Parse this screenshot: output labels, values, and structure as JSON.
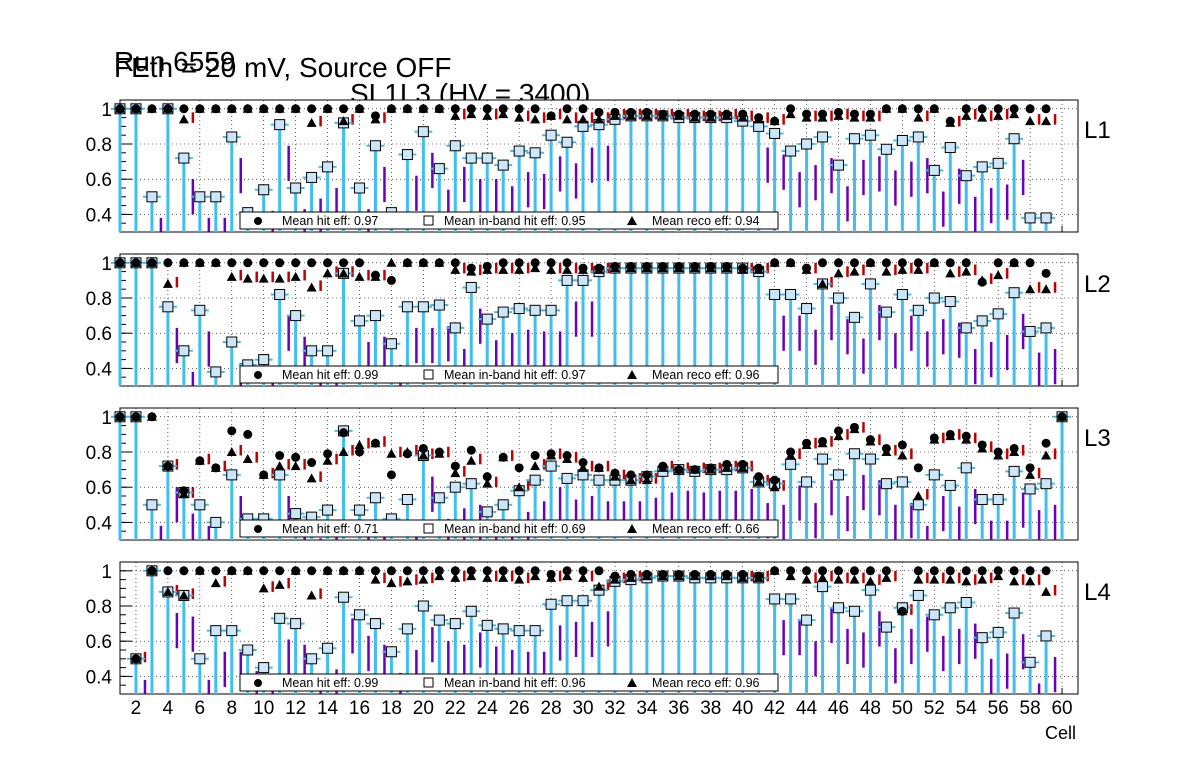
{
  "title": {
    "run": "Run 6559",
    "chamber": "SL1L3 (HV = 3400)",
    "conditions": "FEth = 20 mV, Source OFF"
  },
  "x_axis_label": "Cell",
  "legend_labels": {
    "hit": "Mean hit  eff:",
    "inband": "Mean in-band hit eff:",
    "reco": "Mean reco eff:"
  },
  "colors": {
    "hit_marker": "#000000",
    "inband_box_fill": "#cde6f7",
    "inband_errbar": "#3fbfef",
    "reco_marker": "#000000",
    "purple_bar": "#6a00b8",
    "red_bar": "#c00000",
    "grid": "#000000"
  },
  "chart_data": [
    {
      "type": "scatter",
      "layer": "L1",
      "xlim": [
        1,
        61
      ],
      "ylim": [
        0.3,
        1.05
      ],
      "x_ticks": [
        2,
        4,
        6,
        8,
        10,
        12,
        14,
        16,
        18,
        20,
        22,
        24,
        26,
        28,
        30,
        32,
        34,
        36,
        38,
        40,
        42,
        44,
        46,
        48,
        50,
        52,
        54,
        56,
        58,
        60
      ],
      "y_ticks": [
        0.4,
        0.6,
        0.8,
        1
      ],
      "grid": true,
      "legend_values": {
        "hit": "0.97",
        "inband": "0.95",
        "reco": "0.94"
      },
      "cells": [
        1,
        2,
        3,
        4,
        5,
        6,
        7,
        8,
        9,
        10,
        11,
        12,
        13,
        14,
        15,
        16,
        17,
        18,
        19,
        20,
        21,
        22,
        23,
        24,
        25,
        26,
        27,
        28,
        29,
        30,
        31,
        32,
        33,
        34,
        35,
        36,
        37,
        38,
        39,
        40,
        41,
        42,
        43,
        44,
        45,
        46,
        47,
        48,
        49,
        50,
        51,
        52,
        53,
        54,
        55,
        56,
        57,
        58,
        59
      ],
      "series": [
        {
          "name": "Mean hit  eff",
          "values": [
            1,
            1,
            1,
            1,
            1,
            1,
            1,
            1,
            1,
            1,
            1,
            1,
            1,
            1,
            1,
            1,
            0.96,
            1,
            1,
            1,
            1,
            1,
            1,
            1,
            1,
            1,
            1,
            0.96,
            1,
            1,
            0.98,
            0.98,
            0.98,
            0.98,
            0.97,
            0.97,
            0.97,
            0.97,
            0.97,
            0.97,
            0.95,
            0.93,
            1,
            0.97,
            0.97,
            0.98,
            0.97,
            0.97,
            1,
            1,
            1,
            1,
            0.93,
            1,
            1,
            1,
            1,
            1,
            1
          ]
        },
        {
          "name": "Mean in-band hit eff",
          "values": [
            1,
            1,
            0.5,
            1,
            0.72,
            0.5,
            0.5,
            0.84,
            0.41,
            0.54,
            0.91,
            0.55,
            0.61,
            0.67,
            0.92,
            0.55,
            0.79,
            0.41,
            0.74,
            0.87,
            0.66,
            0.79,
            0.72,
            0.72,
            0.68,
            0.76,
            0.75,
            0.85,
            0.81,
            0.9,
            0.91,
            0.94,
            0.96,
            0.96,
            0.96,
            0.95,
            0.95,
            0.95,
            0.95,
            0.93,
            0.9,
            0.86,
            0.76,
            0.8,
            0.84,
            0.68,
            0.83,
            0.85,
            0.77,
            0.82,
            0.84,
            0.65,
            0.78,
            0.62,
            0.67,
            0.69,
            0.83,
            0.38,
            0.38
          ]
        },
        {
          "name": "Mean reco eff",
          "values": [
            1,
            1,
            1,
            1,
            0.94,
            1,
            1,
            1,
            1,
            1,
            1,
            1,
            0.92,
            1,
            0.93,
            1,
            0.94,
            1,
            1,
            1,
            1,
            0.96,
            0.97,
            0.96,
            0.97,
            0.95,
            0.94,
            0.96,
            0.94,
            0.94,
            0.94,
            0.96,
            0.96,
            0.96,
            0.96,
            0.96,
            0.95,
            0.95,
            0.96,
            0.95,
            0.94,
            0.93,
            0.97,
            0.95,
            0.95,
            0.96,
            0.95,
            0.95,
            1,
            1,
            0.95,
            1,
            0.92,
            0.96,
            0.95,
            0.96,
            0.97,
            0.93,
            0.93
          ]
        }
      ]
    },
    {
      "type": "scatter",
      "layer": "L2",
      "xlim": [
        1,
        61
      ],
      "ylim": [
        0.3,
        1.05
      ],
      "x_ticks": [
        2,
        4,
        6,
        8,
        10,
        12,
        14,
        16,
        18,
        20,
        22,
        24,
        26,
        28,
        30,
        32,
        34,
        36,
        38,
        40,
        42,
        44,
        46,
        48,
        50,
        52,
        54,
        56,
        58,
        60
      ],
      "y_ticks": [
        0.4,
        0.6,
        0.8,
        1
      ],
      "grid": true,
      "legend_values": {
        "hit": "0.99",
        "inband": "0.97",
        "reco": "0.96"
      },
      "cells": [
        1,
        2,
        3,
        4,
        5,
        6,
        7,
        8,
        9,
        10,
        11,
        12,
        13,
        14,
        15,
        16,
        17,
        18,
        19,
        20,
        21,
        22,
        23,
        24,
        25,
        26,
        27,
        28,
        29,
        30,
        31,
        32,
        33,
        34,
        35,
        36,
        37,
        38,
        39,
        40,
        41,
        42,
        43,
        44,
        45,
        46,
        47,
        48,
        49,
        50,
        51,
        52,
        53,
        54,
        55,
        56,
        57,
        58,
        59
      ],
      "series": [
        {
          "name": "Mean hit  eff",
          "values": [
            1,
            1,
            1,
            1,
            1,
            1,
            1,
            1,
            1,
            1,
            1,
            1,
            1,
            1,
            1,
            1,
            0.93,
            0.9,
            1,
            1,
            1,
            1,
            0.97,
            0.98,
            1,
            1,
            1,
            1,
            1,
            0.97,
            0.97,
            0.98,
            0.98,
            0.98,
            0.98,
            0.98,
            0.98,
            0.98,
            0.98,
            0.97,
            0.97,
            1,
            1,
            0.97,
            1,
            1,
            1,
            1,
            1,
            1,
            1,
            1,
            1,
            1,
            0.89,
            1,
            1,
            1,
            0.94
          ]
        },
        {
          "name": "Mean in-band hit eff",
          "values": [
            1,
            1,
            1,
            0.75,
            0.5,
            0.73,
            0.38,
            0.55,
            0.42,
            0.45,
            0.82,
            0.7,
            0.5,
            0.5,
            0.94,
            0.67,
            0.7,
            0.54,
            0.75,
            0.75,
            0.76,
            0.63,
            0.86,
            0.68,
            0.72,
            0.74,
            0.73,
            0.73,
            0.9,
            0.9,
            0.95,
            0.97,
            0.97,
            0.97,
            0.97,
            0.97,
            0.97,
            0.97,
            0.97,
            0.97,
            0.95,
            0.82,
            0.82,
            0.74,
            0.88,
            0.8,
            0.69,
            0.88,
            0.72,
            0.82,
            0.73,
            0.8,
            0.78,
            0.63,
            0.67,
            0.71,
            0.83,
            0.61,
            0.63
          ]
        },
        {
          "name": "Mean reco eff",
          "values": [
            1,
            1,
            1,
            0.88,
            1,
            1,
            1,
            0.92,
            0.91,
            0.91,
            0.91,
            0.92,
            0.86,
            0.94,
            0.94,
            0.92,
            0.92,
            1,
            1,
            1,
            1,
            0.96,
            0.95,
            0.96,
            0.96,
            0.96,
            0.97,
            0.96,
            0.96,
            0.96,
            0.96,
            0.97,
            0.97,
            0.97,
            0.97,
            0.97,
            0.97,
            0.97,
            0.97,
            0.96,
            0.96,
            1,
            1,
            0.96,
            0.88,
            0.94,
            0.95,
            1,
            0.95,
            0.96,
            0.96,
            1,
            0.94,
            0.95,
            0.9,
            0.93,
            1,
            0.85,
            0.85
          ]
        }
      ]
    },
    {
      "type": "scatter",
      "layer": "L3",
      "xlim": [
        1,
        61
      ],
      "ylim": [
        0.3,
        1.05
      ],
      "x_ticks": [
        2,
        4,
        6,
        8,
        10,
        12,
        14,
        16,
        18,
        20,
        22,
        24,
        26,
        28,
        30,
        32,
        34,
        36,
        38,
        40,
        42,
        44,
        46,
        48,
        50,
        52,
        54,
        56,
        58,
        60
      ],
      "y_ticks": [
        0.4,
        0.6,
        0.8,
        1
      ],
      "grid": true,
      "legend_values": {
        "hit": "0.71",
        "inband": "0.69",
        "reco": "0.66"
      },
      "cells": [
        1,
        2,
        3,
        4,
        5,
        6,
        7,
        8,
        9,
        10,
        11,
        12,
        13,
        14,
        15,
        16,
        17,
        18,
        19,
        20,
        21,
        22,
        23,
        24,
        25,
        26,
        27,
        28,
        29,
        30,
        31,
        32,
        33,
        34,
        35,
        36,
        37,
        38,
        39,
        40,
        41,
        42,
        43,
        44,
        45,
        46,
        47,
        48,
        49,
        50,
        51,
        52,
        53,
        54,
        55,
        56,
        57,
        58,
        59,
        60
      ],
      "series": [
        {
          "name": "Mean hit  eff",
          "values": [
            1,
            1,
            1,
            0.72,
            0.58,
            0.75,
            0.71,
            0.92,
            0.9,
            0.67,
            0.78,
            0.77,
            0.74,
            0.79,
            0.91,
            0.8,
            0.85,
            0.67,
            0.79,
            0.82,
            0.8,
            0.72,
            0.81,
            0.66,
            0.77,
            0.71,
            0.78,
            0.79,
            0.78,
            0.74,
            0.71,
            0.68,
            0.67,
            0.67,
            0.72,
            0.7,
            0.7,
            0.71,
            0.73,
            0.73,
            0.66,
            0.64,
            0.8,
            0.85,
            0.86,
            0.92,
            0.94,
            0.87,
            0.82,
            0.84,
            0.71,
            0.88,
            0.9,
            0.89,
            0.84,
            0.8,
            0.82,
            0.71,
            0.85,
            1
          ]
        },
        {
          "name": "Mean in-band hit eff",
          "values": [
            1,
            1,
            0.5,
            0.72,
            0.57,
            0.5,
            0.4,
            0.67,
            0.42,
            0.42,
            0.67,
            0.45,
            0.43,
            0.47,
            0.92,
            0.47,
            0.54,
            0.42,
            0.53,
            0.78,
            0.54,
            0.6,
            0.62,
            0.46,
            0.5,
            0.58,
            0.64,
            0.72,
            0.65,
            0.67,
            0.64,
            0.64,
            0.64,
            0.66,
            0.69,
            0.7,
            0.69,
            0.7,
            0.7,
            0.71,
            0.63,
            0.62,
            0.73,
            0.63,
            0.76,
            0.67,
            0.79,
            0.76,
            0.62,
            0.63,
            0.5,
            0.67,
            0.61,
            0.71,
            0.53,
            0.53,
            0.69,
            0.59,
            0.62,
            1
          ]
        },
        {
          "name": "Mean reco eff",
          "values": [
            1,
            1,
            1,
            0.72,
            0.56,
            0.75,
            0.71,
            0.8,
            0.76,
            0.67,
            0.72,
            0.72,
            0.65,
            0.75,
            0.8,
            0.84,
            0.85,
            0.79,
            0.8,
            0.78,
            0.79,
            0.68,
            0.75,
            0.62,
            0.77,
            0.6,
            0.72,
            0.78,
            0.76,
            0.71,
            0.71,
            0.66,
            0.64,
            0.64,
            0.71,
            0.7,
            0.7,
            0.7,
            0.71,
            0.71,
            0.63,
            0.6,
            0.78,
            0.84,
            0.85,
            0.89,
            0.93,
            0.86,
            0.8,
            0.78,
            0.55,
            0.87,
            0.89,
            0.87,
            0.82,
            0.78,
            0.8,
            0.67,
            0.78,
            1
          ]
        }
      ]
    },
    {
      "type": "scatter",
      "layer": "L4",
      "xlim": [
        1,
        61
      ],
      "ylim": [
        0.3,
        1.05
      ],
      "x_ticks": [
        2,
        4,
        6,
        8,
        10,
        12,
        14,
        16,
        18,
        20,
        22,
        24,
        26,
        28,
        30,
        32,
        34,
        36,
        38,
        40,
        42,
        44,
        46,
        48,
        50,
        52,
        54,
        56,
        58,
        60
      ],
      "y_ticks": [
        0.4,
        0.6,
        0.8,
        1
      ],
      "grid": true,
      "legend_values": {
        "hit": "0.99",
        "inband": "0.96",
        "reco": "0.96"
      },
      "cells": [
        2,
        3,
        4,
        5,
        6,
        7,
        8,
        9,
        10,
        11,
        12,
        13,
        14,
        15,
        16,
        17,
        18,
        19,
        20,
        21,
        22,
        23,
        24,
        25,
        26,
        27,
        28,
        29,
        30,
        31,
        32,
        33,
        34,
        35,
        36,
        37,
        38,
        39,
        40,
        41,
        42,
        43,
        44,
        45,
        46,
        47,
        48,
        49,
        50,
        51,
        52,
        53,
        54,
        55,
        56,
        57,
        58,
        59
      ],
      "series": [
        {
          "name": "Mean hit  eff",
          "values": [
            0.5,
            1,
            1,
            1,
            1,
            1,
            1,
            1,
            1,
            1,
            1,
            1,
            1,
            1,
            1,
            1,
            1,
            1,
            1,
            1,
            1,
            1,
            1,
            1,
            1,
            1,
            0.98,
            1,
            1,
            1,
            0.97,
            0.98,
            0.98,
            0.98,
            0.98,
            0.98,
            0.98,
            0.98,
            0.98,
            0.97,
            1,
            1,
            1,
            1,
            1,
            1,
            1,
            1,
            0.77,
            1,
            1,
            1,
            1,
            1,
            1,
            1,
            1,
            1
          ]
        },
        {
          "name": "Mean in-band hit eff",
          "values": [
            0.5,
            1,
            0.88,
            0.86,
            0.5,
            0.66,
            0.66,
            0.55,
            0.45,
            0.73,
            0.7,
            0.5,
            0.56,
            0.85,
            0.75,
            0.7,
            0.54,
            0.67,
            0.8,
            0.72,
            0.7,
            0.77,
            0.69,
            0.67,
            0.66,
            0.66,
            0.81,
            0.83,
            0.83,
            0.89,
            0.94,
            0.95,
            0.96,
            0.97,
            0.97,
            0.96,
            0.96,
            0.96,
            0.96,
            0.96,
            0.84,
            0.84,
            0.72,
            0.91,
            0.79,
            0.77,
            0.89,
            0.68,
            0.79,
            0.86,
            0.75,
            0.79,
            0.82,
            0.62,
            0.65,
            0.76,
            0.48,
            0.63
          ]
        },
        {
          "name": "Mean reco eff",
          "values": [
            0.5,
            1,
            0.88,
            0.86,
            1,
            0.93,
            1,
            1,
            0.9,
            0.92,
            1,
            0.86,
            1,
            1,
            1,
            0.95,
            0.93,
            0.94,
            0.95,
            0.97,
            0.96,
            0.97,
            0.96,
            0.96,
            0.95,
            0.97,
            0.96,
            0.97,
            0.96,
            0.91,
            0.95,
            0.96,
            0.97,
            0.97,
            0.97,
            0.97,
            0.97,
            0.97,
            0.96,
            0.96,
            1,
            0.97,
            0.95,
            0.96,
            0.95,
            0.95,
            0.94,
            0.96,
            0.77,
            0.95,
            0.95,
            0.95,
            0.94,
            0.95,
            0.97,
            0.94,
            0.94,
            0.88
          ]
        }
      ]
    }
  ]
}
